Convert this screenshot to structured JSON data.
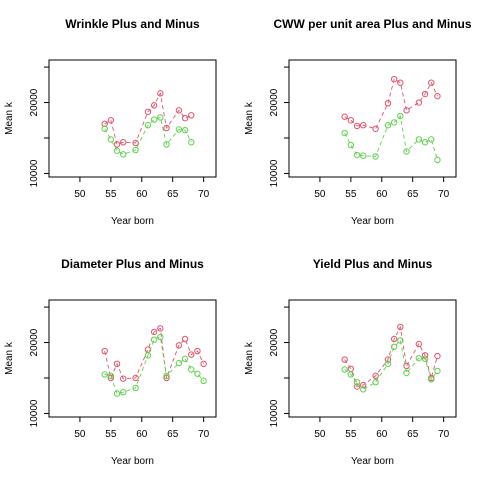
{
  "colors": {
    "plus": "#DF536B",
    "minus": "#61D04F",
    "frame": "#000000"
  },
  "chart_data": [
    {
      "type": "scatter",
      "title": "Wrinkle Plus and Minus",
      "xlabel": "Year born",
      "ylabel": "Mean k",
      "xlim": [
        45,
        72
      ],
      "ylim": [
        9500,
        26000
      ],
      "xticks": [
        50,
        55,
        60,
        65,
        70
      ],
      "yticks": [
        10000,
        20000
      ],
      "series": [
        {
          "color": "plus",
          "x": [
            54,
            55,
            56,
            57,
            59,
            61,
            62,
            63,
            64,
            66,
            67,
            68
          ],
          "y": [
            17000,
            17500,
            14100,
            14400,
            14300,
            18700,
            19600,
            21300,
            16400,
            18900,
            17800,
            18200
          ]
        },
        {
          "color": "minus",
          "x": [
            54,
            55,
            56,
            57,
            59,
            61,
            62,
            63,
            64,
            66,
            67,
            68
          ],
          "y": [
            16300,
            14800,
            13200,
            12700,
            13300,
            16800,
            17600,
            17900,
            14100,
            16200,
            16100,
            14400
          ]
        }
      ]
    },
    {
      "type": "scatter",
      "title": "CWW per unit area Plus and Minus",
      "xlabel": "Year born",
      "ylabel": "Mean k",
      "xlim": [
        45,
        72
      ],
      "ylim": [
        9500,
        26000
      ],
      "xticks": [
        50,
        55,
        60,
        65,
        70
      ],
      "yticks": [
        10000,
        20000
      ],
      "series": [
        {
          "color": "plus",
          "x": [
            54,
            55,
            56,
            57,
            59,
            61,
            62,
            63,
            64,
            66,
            67,
            68,
            69
          ],
          "y": [
            18000,
            17500,
            16700,
            16800,
            16300,
            19900,
            23300,
            22800,
            18900,
            20000,
            21200,
            22800,
            20900
          ]
        },
        {
          "color": "minus",
          "x": [
            54,
            55,
            56,
            57,
            59,
            61,
            62,
            63,
            64,
            66,
            67,
            68,
            69
          ],
          "y": [
            15700,
            14000,
            12600,
            12500,
            12400,
            16800,
            17200,
            18100,
            13100,
            14800,
            14400,
            14800,
            11900
          ]
        }
      ]
    },
    {
      "type": "scatter",
      "title": "Diameter Plus and Minus",
      "xlabel": "Year born",
      "ylabel": "Mean k",
      "xlim": [
        45,
        72
      ],
      "ylim": [
        9500,
        26000
      ],
      "xticks": [
        50,
        55,
        60,
        65,
        70
      ],
      "yticks": [
        10000,
        20000
      ],
      "series": [
        {
          "color": "plus",
          "x": [
            54,
            55,
            56,
            57,
            59,
            61,
            62,
            63,
            64,
            66,
            67,
            68,
            69,
            70
          ],
          "y": [
            18800,
            15000,
            17000,
            14900,
            15000,
            19000,
            21500,
            22000,
            15000,
            19600,
            20500,
            18300,
            18800,
            17000
          ]
        },
        {
          "color": "minus",
          "x": [
            54,
            55,
            56,
            57,
            59,
            61,
            62,
            63,
            64,
            66,
            67,
            68,
            69,
            70
          ],
          "y": [
            15500,
            15300,
            12800,
            13000,
            13600,
            18200,
            20400,
            20800,
            15300,
            17100,
            17700,
            16200,
            15600,
            14600
          ]
        }
      ]
    },
    {
      "type": "scatter",
      "title": "Yield Plus and Minus",
      "xlabel": "Year born",
      "ylabel": "Mean k",
      "xlim": [
        45,
        72
      ],
      "ylim": [
        9500,
        26000
      ],
      "xticks": [
        50,
        55,
        60,
        65,
        70
      ],
      "yticks": [
        10000,
        20000
      ],
      "series": [
        {
          "color": "plus",
          "x": [
            54,
            55,
            56,
            57,
            59,
            61,
            62,
            63,
            64,
            66,
            67,
            68,
            69
          ],
          "y": [
            17600,
            16300,
            13800,
            14000,
            15300,
            17600,
            20500,
            22200,
            16700,
            19800,
            18200,
            15000,
            18100
          ]
        },
        {
          "color": "minus",
          "x": [
            54,
            55,
            56,
            57,
            59,
            61,
            62,
            63,
            64,
            66,
            67,
            68,
            69
          ],
          "y": [
            16200,
            15500,
            14400,
            13400,
            14400,
            17000,
            19400,
            20300,
            15700,
            17800,
            17700,
            14800,
            16000
          ]
        }
      ]
    }
  ]
}
